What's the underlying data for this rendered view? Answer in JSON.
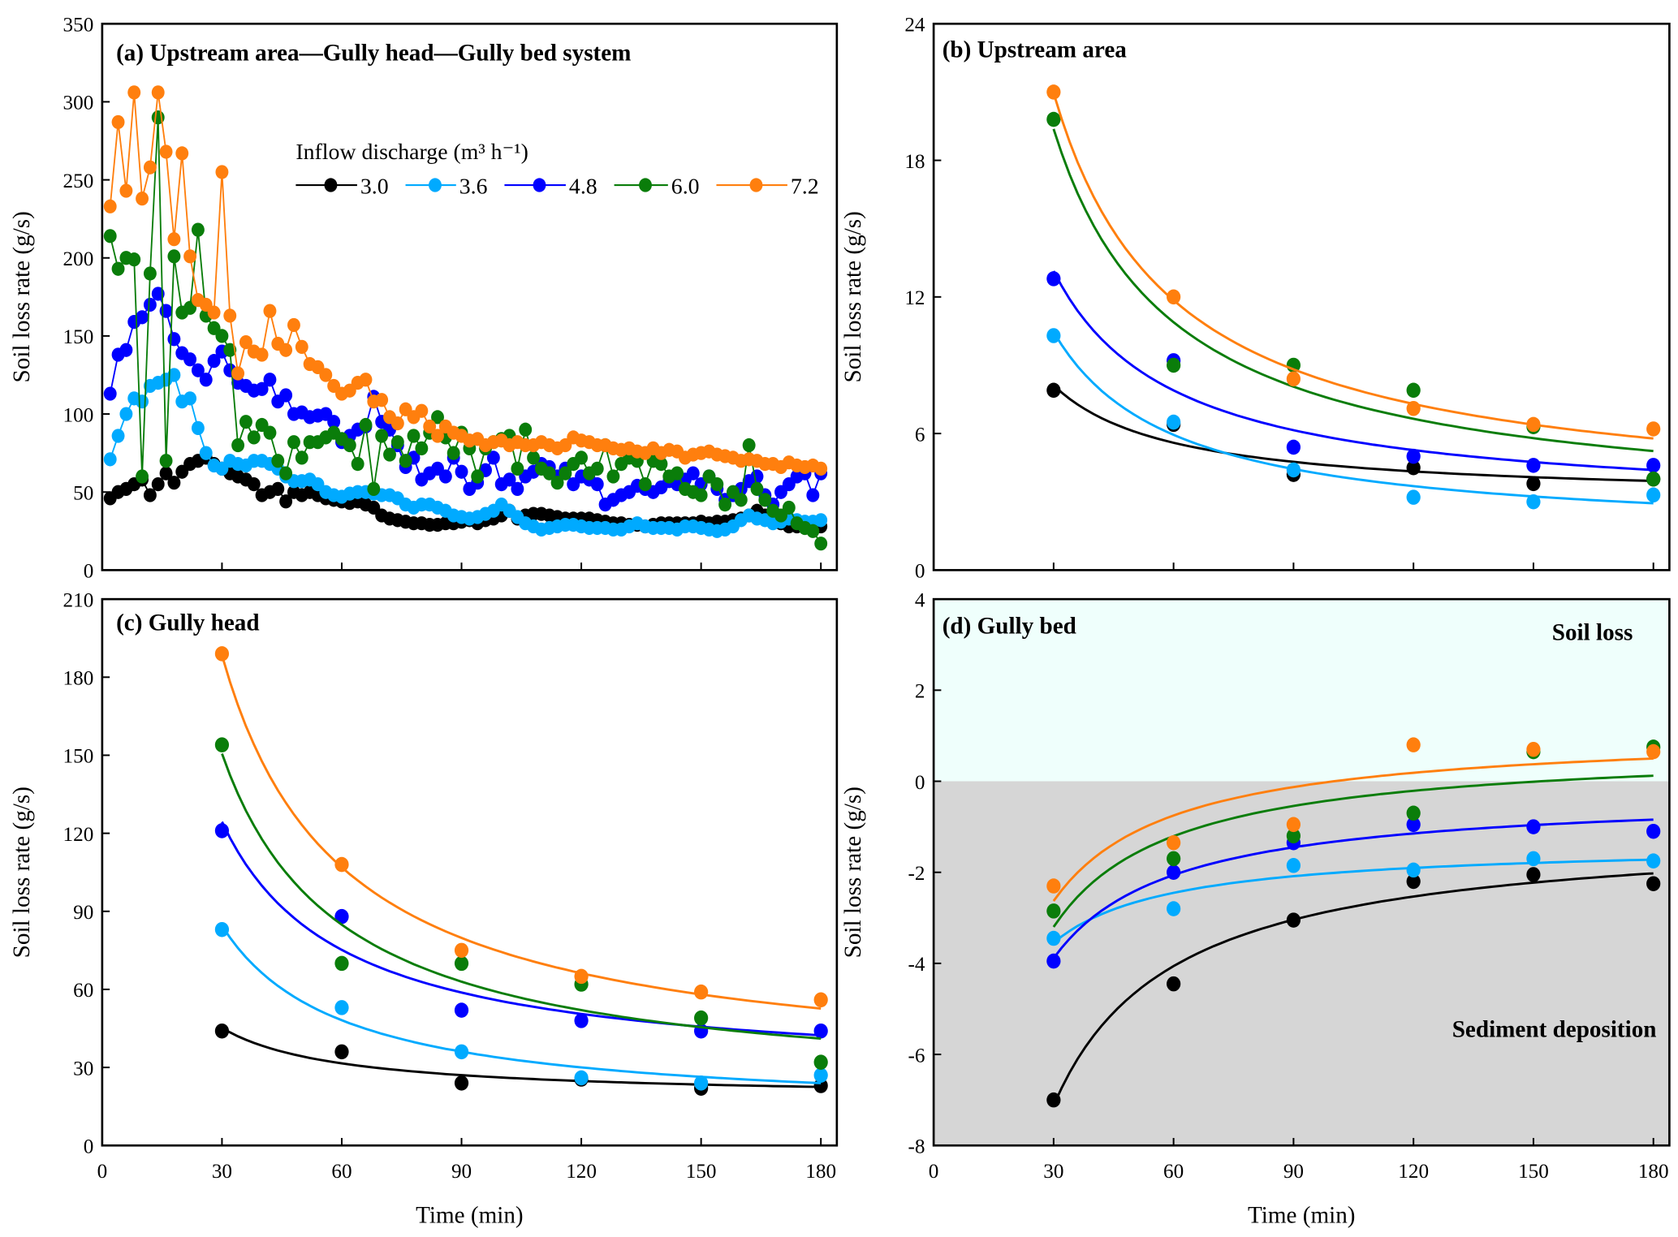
{
  "chart_data": [
    {
      "panel": "a",
      "type": "line",
      "title": "(a)  Upstream area—Gully head—Gully bed system",
      "xlabel": "",
      "ylabel": "Soil loss rate (g/s)",
      "xlim": [
        0,
        184
      ],
      "ylim": [
        0,
        350
      ],
      "xticks": [
        30,
        60,
        90,
        120,
        150,
        180
      ],
      "xtick_labels_shown": false,
      "yticks": [
        0,
        50,
        100,
        150,
        200,
        250,
        300,
        350
      ],
      "legend": {
        "title": "Inflow discharge (m³ h⁻¹)",
        "placement": "upper-middle"
      },
      "x": [
        2,
        4,
        6,
        8,
        10,
        12,
        14,
        16,
        18,
        20,
        22,
        24,
        26,
        28,
        30,
        32,
        34,
        36,
        38,
        40,
        42,
        44,
        46,
        48,
        50,
        52,
        54,
        56,
        58,
        60,
        62,
        64,
        66,
        68,
        70,
        72,
        74,
        76,
        78,
        80,
        82,
        84,
        86,
        88,
        90,
        92,
        94,
        96,
        98,
        100,
        102,
        104,
        106,
        108,
        110,
        112,
        114,
        116,
        118,
        120,
        122,
        124,
        126,
        128,
        130,
        132,
        134,
        136,
        138,
        140,
        142,
        144,
        146,
        148,
        150,
        152,
        154,
        156,
        158,
        160,
        162,
        164,
        166,
        168,
        170,
        172,
        174,
        176,
        178,
        180
      ],
      "series": [
        {
          "name": "3.0",
          "color": "#000000",
          "values": [
            46,
            50,
            52,
            55,
            58,
            48,
            55,
            62,
            56,
            63,
            68,
            70,
            72,
            68,
            65,
            62,
            60,
            58,
            55,
            48,
            50,
            52,
            44,
            50,
            48,
            50,
            48,
            46,
            45,
            44,
            43,
            44,
            42,
            40,
            35,
            33,
            32,
            31,
            30,
            30,
            29,
            29,
            30,
            30,
            31,
            32,
            30,
            32,
            33,
            35,
            38,
            33,
            35,
            36,
            36,
            35,
            34,
            33,
            33,
            33,
            33,
            32,
            31,
            30,
            30,
            29,
            29,
            28,
            29,
            30,
            30,
            30,
            30,
            30,
            31,
            30,
            31,
            31,
            32,
            33,
            35,
            38,
            35,
            33,
            30,
            28,
            28,
            27,
            27,
            28
          ]
        },
        {
          "name": "3.6",
          "color": "#00aaff",
          "values": [
            71,
            86,
            100,
            110,
            108,
            118,
            120,
            122,
            125,
            108,
            110,
            91,
            75,
            67,
            65,
            70,
            68,
            67,
            70,
            70,
            68,
            65,
            60,
            57,
            57,
            58,
            55,
            50,
            48,
            47,
            49,
            50,
            50,
            49,
            48,
            48,
            46,
            42,
            40,
            42,
            42,
            40,
            38,
            35,
            34,
            33,
            34,
            36,
            38,
            42,
            38,
            34,
            30,
            28,
            26,
            27,
            28,
            29,
            29,
            28,
            27,
            27,
            27,
            26,
            26,
            28,
            30,
            28,
            27,
            27,
            27,
            26,
            28,
            28,
            27,
            26,
            25,
            26,
            28,
            32,
            35,
            33,
            32,
            30,
            31,
            33,
            32,
            31,
            31,
            32
          ]
        },
        {
          "name": "4.8",
          "color": "#0000ff",
          "values": [
            113,
            138,
            141,
            159,
            162,
            170,
            177,
            166,
            148,
            139,
            135,
            128,
            122,
            134,
            140,
            128,
            120,
            118,
            115,
            116,
            122,
            108,
            112,
            100,
            101,
            98,
            99,
            100,
            95,
            82,
            86,
            90,
            92,
            111,
            95,
            90,
            80,
            66,
            72,
            58,
            62,
            65,
            60,
            72,
            63,
            52,
            56,
            64,
            72,
            55,
            58,
            52,
            60,
            63,
            68,
            66,
            60,
            65,
            55,
            60,
            58,
            55,
            42,
            45,
            48,
            50,
            54,
            52,
            50,
            53,
            57,
            55,
            58,
            62,
            55,
            60,
            52,
            45,
            48,
            52,
            57,
            60,
            48,
            42,
            50,
            55,
            60,
            62,
            48,
            62
          ]
        },
        {
          "name": "6.0",
          "color": "#0a7d0a",
          "values": [
            214,
            193,
            200,
            199,
            60,
            190,
            290,
            70,
            201,
            165,
            168,
            218,
            163,
            155,
            150,
            141,
            80,
            95,
            85,
            93,
            88,
            70,
            62,
            82,
            72,
            82,
            82,
            85,
            88,
            84,
            80,
            68,
            93,
            52,
            86,
            74,
            82,
            70,
            86,
            78,
            88,
            98,
            85,
            75,
            88,
            78,
            60,
            78,
            82,
            84,
            86,
            65,
            90,
            72,
            65,
            62,
            56,
            62,
            68,
            72,
            62,
            65,
            80,
            60,
            68,
            72,
            70,
            55,
            70,
            68,
            60,
            62,
            52,
            50,
            48,
            60,
            55,
            42,
            50,
            45,
            80,
            52,
            45,
            38,
            35,
            40,
            30,
            27,
            25,
            17
          ]
        },
        {
          "name": "7.2",
          "color": "#ff7f0e",
          "values": [
            233,
            287,
            243,
            306,
            238,
            258,
            306,
            268,
            212,
            267,
            201,
            173,
            170,
            165,
            255,
            163,
            126,
            146,
            140,
            138,
            166,
            145,
            141,
            157,
            143,
            132,
            130,
            125,
            118,
            113,
            115,
            120,
            122,
            108,
            109,
            98,
            94,
            103,
            98,
            102,
            92,
            86,
            92,
            88,
            86,
            83,
            84,
            80,
            82,
            83,
            80,
            82,
            80,
            80,
            82,
            80,
            78,
            80,
            85,
            83,
            82,
            80,
            80,
            78,
            77,
            78,
            76,
            75,
            78,
            75,
            77,
            76,
            72,
            74,
            75,
            76,
            74,
            73,
            72,
            70,
            71,
            70,
            68,
            68,
            66,
            69,
            67,
            66,
            67,
            65
          ]
        }
      ]
    },
    {
      "panel": "b",
      "type": "scatter",
      "title": "(b)  Upstream area",
      "xlabel": "",
      "ylabel": "Soil loss rate (g/s)",
      "xlim": [
        0,
        184
      ],
      "ylim": [
        0,
        24
      ],
      "xticks": [
        30,
        60,
        90,
        120,
        150,
        180
      ],
      "xtick_labels_shown": false,
      "yticks": [
        0,
        6,
        12,
        18,
        24
      ],
      "fitted_curves": true,
      "x": [
        30,
        60,
        90,
        120,
        150,
        180
      ],
      "series": [
        {
          "color": "#000000",
          "values": [
            7.9,
            6.4,
            4.2,
            4.5,
            3.8,
            4.0
          ]
        },
        {
          "color": "#00aaff",
          "values": [
            10.3,
            6.5,
            4.4,
            3.2,
            3.0,
            3.3
          ]
        },
        {
          "color": "#0000ff",
          "values": [
            12.8,
            9.2,
            5.4,
            5.0,
            4.6,
            4.6
          ]
        },
        {
          "color": "#0a7d0a",
          "values": [
            19.8,
            9.0,
            9.0,
            7.9,
            6.3,
            4.0
          ]
        },
        {
          "color": "#ff7f0e",
          "values": [
            21.0,
            12.0,
            8.4,
            7.1,
            6.4,
            6.2
          ]
        }
      ]
    },
    {
      "panel": "c",
      "type": "scatter",
      "title": "(c) Gully head",
      "xlabel": "Time (min)",
      "ylabel": "Soil loss rate (g/s)",
      "xlim": [
        0,
        184
      ],
      "ylim": [
        0,
        210
      ],
      "xticks": [
        0,
        30,
        60,
        90,
        120,
        150,
        180
      ],
      "xtick_labels_shown": true,
      "yticks": [
        0,
        30,
        60,
        90,
        120,
        150,
        180,
        210
      ],
      "fitted_curves": true,
      "x": [
        30,
        60,
        90,
        120,
        150,
        180
      ],
      "series": [
        {
          "color": "#000000",
          "values": [
            44,
            36,
            24,
            25.5,
            22,
            23
          ]
        },
        {
          "color": "#00aaff",
          "values": [
            83,
            53,
            36,
            26,
            24,
            27
          ]
        },
        {
          "color": "#0000ff",
          "values": [
            121,
            88,
            52,
            48,
            44,
            44
          ]
        },
        {
          "color": "#0a7d0a",
          "values": [
            154,
            70,
            70,
            62,
            49,
            32
          ]
        },
        {
          "color": "#ff7f0e",
          "values": [
            189,
            108,
            75,
            65,
            59,
            56
          ]
        }
      ]
    },
    {
      "panel": "d",
      "type": "scatter",
      "title": "(d) Gully bed",
      "xlabel": "Time (min)",
      "ylabel": "Soil loss rate (g/s)",
      "xlim": [
        0,
        184
      ],
      "ylim": [
        -8,
        4
      ],
      "xticks": [
        0,
        30,
        60,
        90,
        120,
        150,
        180
      ],
      "xtick_labels_shown": true,
      "yticks": [
        -8,
        -6,
        -4,
        -2,
        0,
        2,
        4
      ],
      "fitted_curves": true,
      "regions": {
        "above_zero": {
          "label": "Soil loss",
          "color": "#effffc"
        },
        "below_zero": {
          "label": "Sediment deposition",
          "color": "#d6d6d6"
        }
      },
      "x": [
        30,
        60,
        90,
        120,
        150,
        180
      ],
      "series": [
        {
          "color": "#000000",
          "values": [
            -7.0,
            -4.45,
            -3.05,
            -2.2,
            -2.05,
            -2.25
          ]
        },
        {
          "color": "#00aaff",
          "values": [
            -3.45,
            -2.8,
            -1.85,
            -1.95,
            -1.7,
            -1.75
          ]
        },
        {
          "color": "#0000ff",
          "values": [
            -3.95,
            -2.0,
            -1.35,
            -0.95,
            -1.0,
            -1.1
          ]
        },
        {
          "color": "#0a7d0a",
          "values": [
            -2.85,
            -1.7,
            -1.2,
            -0.7,
            0.65,
            0.75
          ]
        },
        {
          "color": "#ff7f0e",
          "values": [
            -2.3,
            -1.35,
            -0.95,
            0.8,
            0.7,
            0.65
          ]
        }
      ]
    }
  ]
}
